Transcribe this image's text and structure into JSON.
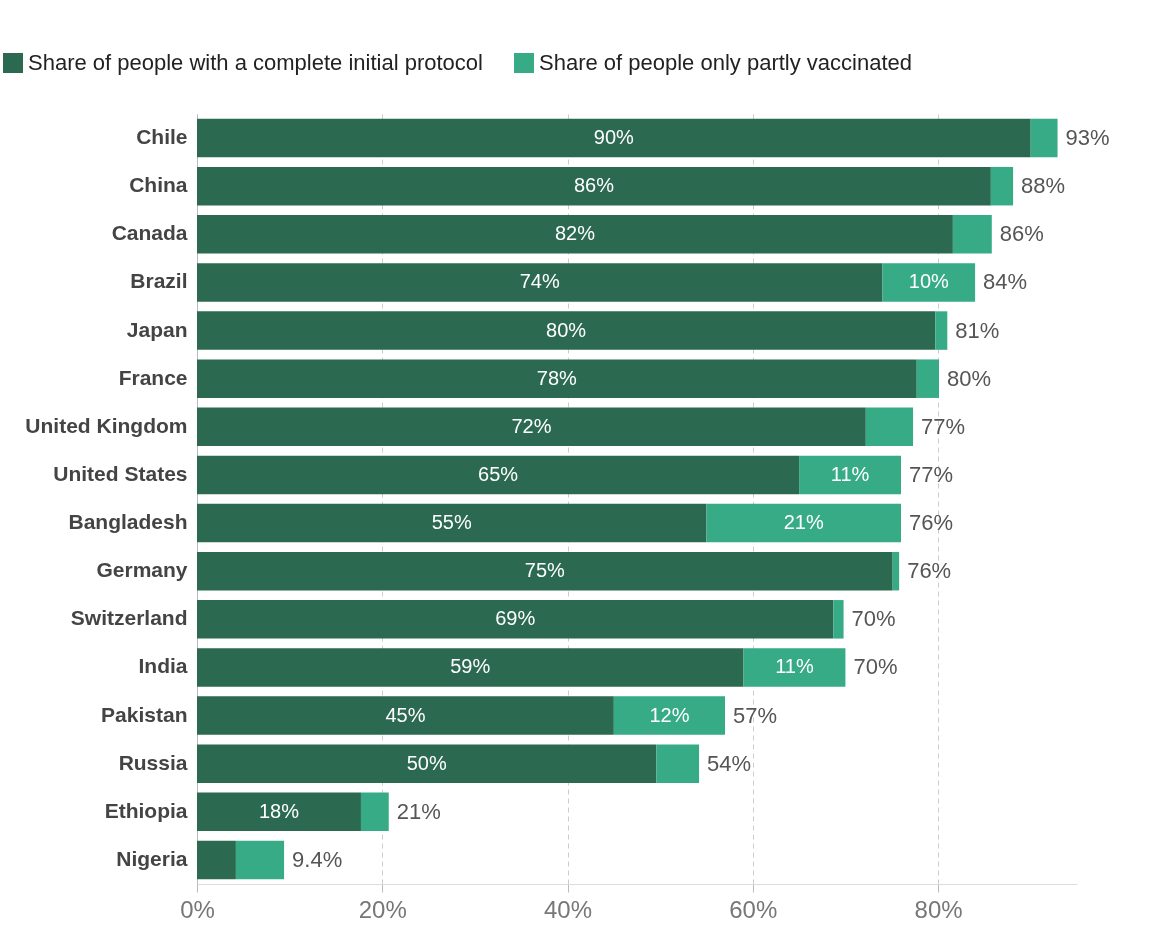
{
  "chart_data": {
    "type": "bar",
    "orientation": "horizontal",
    "stacked": true,
    "categories": [
      "Chile",
      "China",
      "Canada",
      "Brazil",
      "Japan",
      "France",
      "United Kingdom",
      "United States",
      "Bangladesh",
      "Germany",
      "Switzerland",
      "India",
      "Pakistan",
      "Russia",
      "Ethiopia",
      "Nigeria"
    ],
    "series": [
      {
        "name": "Share of people with a complete initial protocol",
        "color": "#2b6a50",
        "values": [
          90,
          85.7,
          81.6,
          74,
          79.7,
          77.7,
          72.2,
          65,
          55,
          75.1,
          68.7,
          59,
          45,
          49.6,
          17.7,
          4.2
        ],
        "value_labels": [
          "90%",
          "86%",
          "82%",
          "74%",
          "80%",
          "78%",
          "72%",
          "65%",
          "55%",
          "75%",
          "69%",
          "59%",
          "45%",
          "50%",
          "18%",
          null
        ]
      },
      {
        "name": "Share of people only partly vaccinated",
        "color": "#36ab85",
        "values": [
          2.9,
          2.4,
          4.2,
          10,
          1.3,
          2.4,
          5.1,
          11,
          21,
          0.7,
          1.1,
          11,
          12,
          4.6,
          3,
          5.2
        ],
        "value_labels": [
          null,
          null,
          null,
          "10%",
          null,
          null,
          null,
          "11%",
          "21%",
          null,
          null,
          "11%",
          "12%",
          null,
          null,
          null
        ]
      }
    ],
    "totals": [
      "93%",
      "88%",
      "86%",
      "84%",
      "81%",
      "80%",
      "77%",
      "77%",
      "76%",
      "76%",
      "70%",
      "70%",
      "57%",
      "54%",
      "21%",
      "9.4%"
    ],
    "xlim": [
      0,
      95
    ],
    "xticks": [
      {
        "value": 0,
        "label": "0%"
      },
      {
        "value": 20,
        "label": "20%"
      },
      {
        "value": 40,
        "label": "40%"
      },
      {
        "value": 60,
        "label": "60%"
      },
      {
        "value": 80,
        "label": "80%"
      }
    ],
    "grid": "x",
    "legend": "top left"
  }
}
